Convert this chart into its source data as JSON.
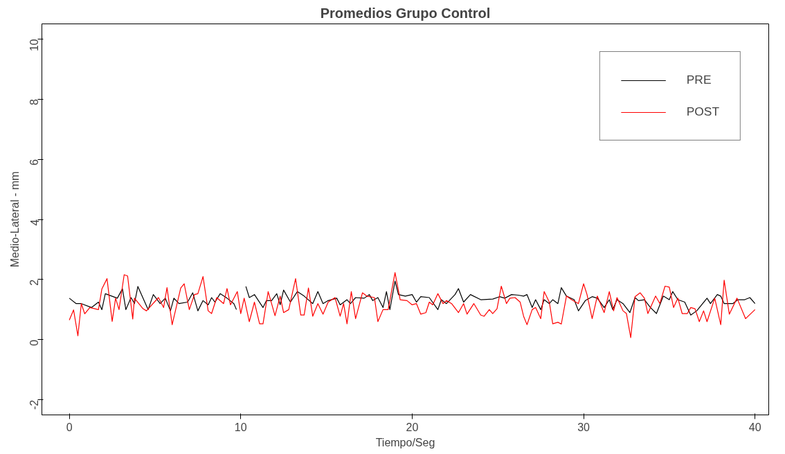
{
  "chart_data": {
    "type": "line",
    "title": "Promedios Grupo Control",
    "xlabel": "Tiempo/Seg",
    "ylabel": "Medio-Lateral - mm",
    "xlim": [
      -1.6,
      40.8
    ],
    "ylim": [
      -2.5,
      10.5
    ],
    "xticks": [
      0,
      10,
      20,
      30,
      40
    ],
    "yticks": [
      -2,
      0,
      2,
      4,
      6,
      8,
      10
    ],
    "grid": false,
    "legend": "top right",
    "line_style": "solid",
    "marker": "none",
    "series": [
      {
        "name": "PRE",
        "color": "#000000",
        "x": [
          0,
          0.4,
          0.7,
          1.3,
          1.7,
          1.9,
          2.1,
          2.8,
          3.1,
          3.3,
          3.6,
          3.8,
          4.0,
          4.6,
          4.9,
          5.3,
          5.6,
          5.9,
          6.1,
          6.4,
          6.9,
          7.2,
          7.5,
          7.8,
          8.1,
          8.3,
          8.5,
          8.8,
          9.2,
          9.6,
          9.75,
          9.8,
          10.25,
          10.3,
          10.5,
          10.8,
          11.3,
          11.5,
          11.8,
          12.1,
          12.3,
          12.5,
          12.9,
          13.3,
          13.7,
          14.2,
          14.5,
          14.8,
          15.1,
          15.6,
          15.8,
          16.2,
          16.4,
          16.7,
          17.2,
          17.5,
          17.7,
          18.0,
          18.3,
          18.5,
          18.7,
          19.0,
          19.2,
          19.6,
          20.0,
          20.25,
          20.5,
          21.0,
          21.5,
          21.7,
          22.0,
          22.5,
          22.7,
          23.0,
          23.4,
          24.0,
          24.7,
          25.1,
          25.4,
          25.8,
          26.2,
          26.5,
          26.7,
          27.0,
          27.2,
          27.5,
          27.7,
          28.0,
          28.2,
          28.5,
          28.7,
          29.0,
          29.45,
          29.7,
          30.1,
          30.5,
          30.8,
          31.2,
          31.5,
          31.7,
          31.95,
          32.3,
          32.7,
          33.0,
          33.2,
          33.55,
          33.9,
          34.25,
          34.65,
          35.0,
          35.2,
          35.5,
          35.9,
          36.25,
          36.6,
          37.2,
          37.4,
          37.8,
          38.0,
          38.2,
          38.7,
          39.0,
          39.4,
          39.7,
          40.0
        ],
        "values": [
          1.38,
          1.2,
          1.2,
          1.07,
          1.25,
          1.0,
          1.53,
          1.38,
          1.69,
          1.0,
          1.4,
          1.2,
          1.77,
          1.0,
          1.5,
          1.2,
          1.38,
          0.96,
          1.38,
          1.2,
          1.25,
          1.56,
          0.96,
          1.3,
          1.16,
          1.4,
          1.25,
          1.53,
          1.38,
          1.2,
          1.0,
          null,
          null,
          1.77,
          1.4,
          1.5,
          1.07,
          1.3,
          1.3,
          1.53,
          1.16,
          1.65,
          1.25,
          1.6,
          1.45,
          1.2,
          1.6,
          1.2,
          1.3,
          1.38,
          1.16,
          1.33,
          1.2,
          1.4,
          1.38,
          1.5,
          1.3,
          1.4,
          1.07,
          1.6,
          1.0,
          1.95,
          1.5,
          1.45,
          1.5,
          1.25,
          1.43,
          1.4,
          1.0,
          1.33,
          1.2,
          1.5,
          1.7,
          1.25,
          1.5,
          1.33,
          1.35,
          1.43,
          1.38,
          1.5,
          1.48,
          1.45,
          1.5,
          1.07,
          1.33,
          1.0,
          1.33,
          1.2,
          1.33,
          1.2,
          1.73,
          1.45,
          1.33,
          0.96,
          1.3,
          1.43,
          1.38,
          1.07,
          1.33,
          1.0,
          1.33,
          1.2,
          0.9,
          1.4,
          1.3,
          1.33,
          1.07,
          0.87,
          1.45,
          1.33,
          1.6,
          1.33,
          1.25,
          0.82,
          0.96,
          1.38,
          1.2,
          1.5,
          1.45,
          1.2,
          1.2,
          1.33,
          1.33,
          1.4,
          1.2
        ]
      },
      {
        "name": "POST",
        "color": "#ff0000",
        "x": [
          0,
          0.25,
          0.5,
          0.7,
          0.9,
          1.2,
          1.7,
          1.9,
          2.2,
          2.5,
          2.7,
          2.9,
          3.2,
          3.4,
          3.7,
          3.8,
          4.3,
          4.5,
          5.2,
          5.5,
          5.7,
          6.0,
          6.5,
          6.7,
          7.0,
          7.3,
          7.5,
          7.8,
          8.1,
          8.3,
          8.6,
          9.0,
          9.2,
          9.4,
          9.8,
          10.0,
          10.2,
          10.5,
          10.8,
          11.1,
          11.3,
          11.6,
          12.0,
          12.3,
          12.5,
          12.8,
          13.2,
          13.5,
          13.7,
          13.95,
          14.2,
          14.5,
          14.8,
          15.1,
          15.5,
          15.8,
          16.0,
          16.2,
          16.45,
          16.7,
          17.1,
          17.35,
          17.8,
          18.0,
          18.3,
          18.6,
          19.0,
          19.3,
          19.7,
          20.0,
          20.25,
          20.5,
          20.8,
          21.0,
          21.2,
          21.5,
          21.8,
          22.0,
          22.3,
          22.7,
          23.0,
          23.2,
          23.6,
          24.0,
          24.2,
          24.5,
          24.7,
          24.95,
          25.2,
          25.5,
          25.7,
          26.0,
          26.3,
          26.5,
          26.7,
          27.0,
          27.2,
          27.5,
          27.7,
          28.0,
          28.2,
          28.5,
          28.7,
          29.0,
          29.3,
          29.7,
          30.0,
          30.2,
          30.5,
          30.8,
          31.2,
          31.5,
          31.75,
          31.95,
          32.3,
          32.5,
          32.75,
          33.0,
          33.3,
          33.55,
          33.75,
          34.2,
          34.45,
          34.75,
          35.0,
          35.25,
          35.5,
          35.75,
          36.05,
          36.25,
          36.5,
          36.75,
          37.0,
          37.2,
          37.65,
          38.0,
          38.2,
          38.5,
          38.95,
          39.45,
          40.0
        ],
        "values": [
          0.65,
          0.99,
          0.13,
          1.2,
          0.86,
          1.07,
          1.0,
          1.69,
          2.03,
          0.61,
          1.38,
          1.0,
          2.16,
          2.12,
          0.69,
          1.38,
          1.03,
          0.96,
          1.4,
          1.07,
          1.73,
          0.5,
          1.72,
          1.86,
          1.0,
          1.5,
          1.53,
          2.1,
          0.96,
          0.87,
          1.4,
          1.2,
          1.7,
          1.16,
          1.6,
          0.87,
          1.38,
          0.6,
          1.25,
          0.53,
          0.53,
          1.6,
          0.8,
          1.45,
          0.9,
          1.0,
          2.03,
          0.82,
          0.82,
          1.72,
          0.78,
          1.2,
          0.85,
          1.25,
          1.4,
          0.78,
          1.2,
          0.53,
          1.6,
          0.7,
          1.56,
          1.45,
          1.4,
          0.6,
          1.0,
          1.0,
          2.23,
          1.33,
          1.3,
          1.16,
          1.2,
          0.85,
          0.9,
          1.25,
          1.16,
          1.53,
          1.2,
          1.3,
          1.2,
          0.9,
          1.2,
          0.85,
          1.2,
          0.82,
          0.78,
          1.0,
          0.87,
          1.03,
          1.78,
          1.2,
          1.38,
          1.4,
          1.25,
          0.78,
          0.5,
          1.0,
          1.07,
          0.7,
          1.6,
          1.25,
          0.53,
          0.58,
          0.52,
          1.45,
          1.33,
          1.2,
          1.86,
          1.5,
          0.7,
          1.45,
          0.9,
          1.6,
          0.96,
          1.4,
          0.96,
          0.87,
          0.07,
          1.43,
          1.56,
          1.38,
          0.87,
          1.45,
          1.2,
          1.78,
          1.75,
          1.07,
          1.38,
          0.87,
          0.87,
          1.07,
          1.03,
          0.6,
          0.96,
          0.6,
          1.38,
          0.5,
          1.98,
          0.85,
          1.38,
          0.7,
          1.0
        ]
      }
    ]
  }
}
